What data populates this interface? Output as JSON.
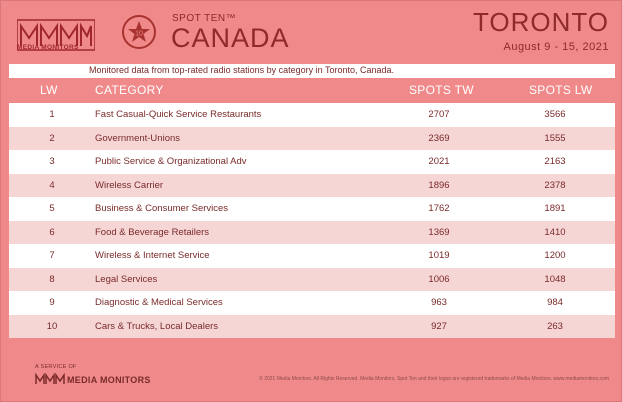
{
  "header": {
    "brand": "MEDIA MONITORS",
    "badge_number": "10",
    "program": "SPOT TEN™",
    "country": "CANADA",
    "city": "TORONTO",
    "dates": "August 9 - 15, 2021"
  },
  "subtitle": "Monitored data from top-rated radio stations by category in Toronto, Canada.",
  "table": {
    "headers": {
      "rank": "LW",
      "category": "CATEGORY",
      "spots_tw": "SPOTS TW",
      "spots_lw": "SPOTS LW"
    },
    "rows": [
      {
        "rank": "1",
        "category": "Fast Casual-Quick Service Restaurants",
        "spots_tw": "2707",
        "spots_lw": "3566"
      },
      {
        "rank": "2",
        "category": "Government-Unions",
        "spots_tw": "2369",
        "spots_lw": "1555"
      },
      {
        "rank": "3",
        "category": "Public Service & Organizational Adv",
        "spots_tw": "2021",
        "spots_lw": "2163"
      },
      {
        "rank": "4",
        "category": "Wireless Carrier",
        "spots_tw": "1896",
        "spots_lw": "2378"
      },
      {
        "rank": "5",
        "category": "Business & Consumer Services",
        "spots_tw": "1762",
        "spots_lw": "1891"
      },
      {
        "rank": "6",
        "category": "Food & Beverage Retailers",
        "spots_tw": "1369",
        "spots_lw": "1410"
      },
      {
        "rank": "7",
        "category": "Wireless & Internet Service",
        "spots_tw": "1019",
        "spots_lw": "1200"
      },
      {
        "rank": "8",
        "category": "Legal Services",
        "spots_tw": "1006",
        "spots_lw": "1048"
      },
      {
        "rank": "9",
        "category": "Diagnostic & Medical Services",
        "spots_tw": "963",
        "spots_lw": "984"
      },
      {
        "rank": "10",
        "category": "Cars & Trucks, Local Dealers",
        "spots_tw": "927",
        "spots_lw": "263"
      }
    ]
  },
  "footer": {
    "service_label": "A SERVICE OF",
    "brand": "MEDIA MONITORS",
    "copyright": "© 2021 Media Monitors. All Rights Reserved. Media Monitors, Spot Ten and their logos are registered trademarks of Media Monitors. www.mediamonitors.com"
  },
  "colors": {
    "background": "#f08a8a",
    "text_dark": "#8e2a2a",
    "row_alt": "#f6d5d5"
  },
  "icons": [
    "media-monitors-logo",
    "star-icon"
  ]
}
